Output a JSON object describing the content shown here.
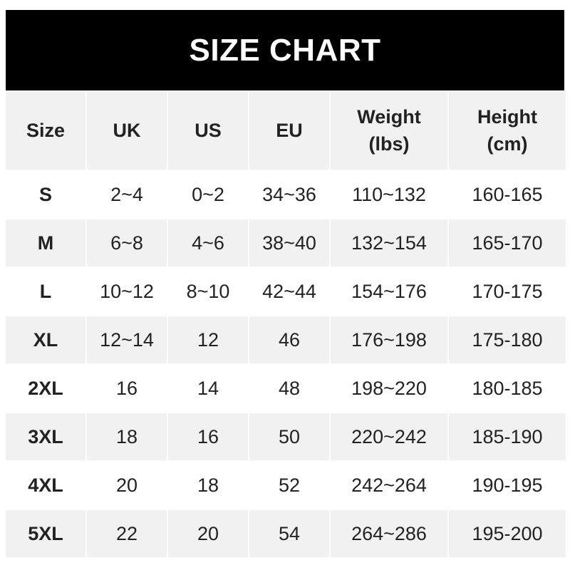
{
  "title": "SIZE CHART",
  "chart_data": {
    "type": "table",
    "title": "SIZE CHART",
    "columns": [
      "Size",
      "UK",
      "US",
      "EU",
      "Weight (lbs)",
      "Height (cm)"
    ],
    "column_lines": [
      [
        "Size"
      ],
      [
        "UK"
      ],
      [
        "US"
      ],
      [
        "EU"
      ],
      [
        "Weight",
        "(lbs)"
      ],
      [
        "Height",
        "(cm)"
      ]
    ],
    "rows": [
      [
        "S",
        "2~4",
        "0~2",
        "34~36",
        "110~132",
        "160-165"
      ],
      [
        "M",
        "6~8",
        "4~6",
        "38~40",
        "132~154",
        "165-170"
      ],
      [
        "L",
        "10~12",
        "8~10",
        "42~44",
        "154~176",
        "170-175"
      ],
      [
        "XL",
        "12~14",
        "12",
        "46",
        "176~198",
        "175-180"
      ],
      [
        "2XL",
        "16",
        "14",
        "48",
        "198~220",
        "180-185"
      ],
      [
        "3XL",
        "18",
        "16",
        "50",
        "220~242",
        "185-190"
      ],
      [
        "4XL",
        "20",
        "18",
        "52",
        "242~264",
        "190-195"
      ],
      [
        "5XL",
        "22",
        "20",
        "54",
        "264~286",
        "195-200"
      ]
    ]
  },
  "colors": {
    "title_bg": "#000000",
    "title_text": "#ffffff",
    "stripe": "#f1f1f1",
    "text": "#222222"
  }
}
